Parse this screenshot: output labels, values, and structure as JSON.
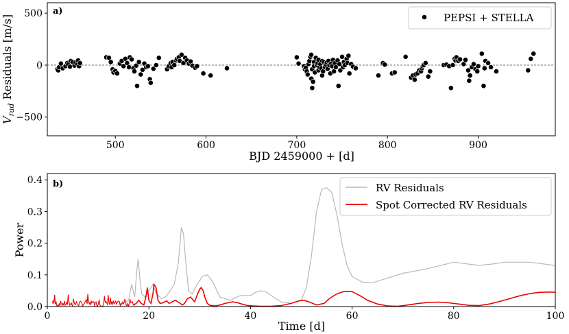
{
  "chart_data": [
    {
      "panel": "a)",
      "type": "scatter",
      "title": "",
      "xlabel": "BJD 2459000 + [d]",
      "ylabel": "V_rad Residuals [m/s]",
      "ylabel_main": "V",
      "ylabel_sub": "rad",
      "ylabel_rest": " Residuals [m/s]",
      "xlim": [
        425,
        985
      ],
      "ylim": [
        -680,
        600
      ],
      "xticks": [
        500,
        600,
        700,
        800,
        900
      ],
      "yticks": [
        -500,
        0,
        500
      ],
      "ytick_labels": [
        "−500",
        "0",
        "500"
      ],
      "reference_line": 0,
      "legend": {
        "label": "PEPSI + STELLA",
        "location": "top-right"
      },
      "points": [
        [
          436,
          -40
        ],
        [
          437,
          -50
        ],
        [
          438,
          -20
        ],
        [
          440,
          15
        ],
        [
          442,
          -30
        ],
        [
          445,
          -10
        ],
        [
          447,
          20
        ],
        [
          448,
          5
        ],
        [
          450,
          -15
        ],
        [
          451,
          40
        ],
        [
          453,
          30
        ],
        [
          455,
          -5
        ],
        [
          456,
          25
        ],
        [
          458,
          10
        ],
        [
          459,
          45
        ],
        [
          460,
          -10
        ],
        [
          461,
          20
        ],
        [
          490,
          75
        ],
        [
          493,
          70
        ],
        [
          495,
          30
        ],
        [
          497,
          -40
        ],
        [
          498,
          -70
        ],
        [
          500,
          -55
        ],
        [
          502,
          -80
        ],
        [
          505,
          15
        ],
        [
          507,
          40
        ],
        [
          509,
          -10
        ],
        [
          511,
          60
        ],
        [
          513,
          20
        ],
        [
          515,
          -20
        ],
        [
          516,
          75
        ],
        [
          518,
          55
        ],
        [
          520,
          -30
        ],
        [
          521,
          -60
        ],
        [
          523,
          -5
        ],
        [
          524,
          -200
        ],
        [
          526,
          30
        ],
        [
          528,
          -90
        ],
        [
          530,
          -45
        ],
        [
          532,
          15
        ],
        [
          534,
          -20
        ],
        [
          536,
          -10
        ],
        [
          538,
          -135
        ],
        [
          539,
          -170
        ],
        [
          542,
          -35
        ],
        [
          545,
          0
        ],
        [
          548,
          70
        ],
        [
          557,
          -40
        ],
        [
          559,
          -10
        ],
        [
          561,
          20
        ],
        [
          562,
          -20
        ],
        [
          563,
          30
        ],
        [
          565,
          0
        ],
        [
          567,
          45
        ],
        [
          568,
          60
        ],
        [
          570,
          75
        ],
        [
          571,
          40
        ],
        [
          573,
          100
        ],
        [
          575,
          20
        ],
        [
          577,
          70
        ],
        [
          579,
          45
        ],
        [
          581,
          15
        ],
        [
          583,
          35
        ],
        [
          585,
          -5
        ],
        [
          588,
          -25
        ],
        [
          590,
          -10
        ],
        [
          597,
          -80
        ],
        [
          605,
          -100
        ],
        [
          623,
          -30
        ],
        [
          700,
          75
        ],
        [
          702,
          15
        ],
        [
          708,
          -10
        ],
        [
          709,
          -40
        ],
        [
          710,
          -25
        ],
        [
          711,
          -60
        ],
        [
          712,
          -90
        ],
        [
          713,
          10
        ],
        [
          714,
          40
        ],
        [
          715,
          80
        ],
        [
          716,
          100
        ],
        [
          716,
          -130
        ],
        [
          717,
          -40
        ],
        [
          717,
          -220
        ],
        [
          718,
          -160
        ],
        [
          719,
          30
        ],
        [
          719,
          -10
        ],
        [
          720,
          -70
        ],
        [
          721,
          70
        ],
        [
          722,
          0
        ],
        [
          723,
          20
        ],
        [
          724,
          50
        ],
        [
          724,
          -50
        ],
        [
          725,
          -20
        ],
        [
          726,
          10
        ],
        [
          727,
          -30
        ],
        [
          728,
          40
        ],
        [
          728,
          -100
        ],
        [
          729,
          -60
        ],
        [
          730,
          30
        ],
        [
          731,
          -20
        ],
        [
          732,
          5
        ],
        [
          733,
          25
        ],
        [
          734,
          -35
        ],
        [
          735,
          40
        ],
        [
          736,
          0
        ],
        [
          737,
          -80
        ],
        [
          738,
          15
        ],
        [
          739,
          -10
        ],
        [
          740,
          50
        ],
        [
          741,
          -60
        ],
        [
          742,
          20
        ],
        [
          743,
          -20
        ],
        [
          745,
          45
        ],
        [
          746,
          -200
        ],
        [
          747,
          10
        ],
        [
          748,
          -50
        ],
        [
          750,
          80
        ],
        [
          751,
          -20
        ],
        [
          752,
          30
        ],
        [
          753,
          0
        ],
        [
          755,
          60
        ],
        [
          756,
          20
        ],
        [
          757,
          90
        ],
        [
          758,
          -80
        ],
        [
          760,
          10
        ],
        [
          762,
          -15
        ],
        [
          765,
          -30
        ],
        [
          790,
          -100
        ],
        [
          795,
          20
        ],
        [
          797,
          5
        ],
        [
          805,
          -80
        ],
        [
          808,
          -70
        ],
        [
          820,
          80
        ],
        [
          826,
          -120
        ],
        [
          828,
          -100
        ],
        [
          830,
          -140
        ],
        [
          831,
          -90
        ],
        [
          833,
          -80
        ],
        [
          835,
          -50
        ],
        [
          837,
          -60
        ],
        [
          838,
          -30
        ],
        [
          839,
          -10
        ],
        [
          840,
          0
        ],
        [
          842,
          20
        ],
        [
          845,
          -110
        ],
        [
          847,
          -60
        ],
        [
          862,
          0
        ],
        [
          865,
          5
        ],
        [
          868,
          -10
        ],
        [
          870,
          -220
        ],
        [
          872,
          0
        ],
        [
          874,
          60
        ],
        [
          875,
          45
        ],
        [
          876,
          75
        ],
        [
          878,
          40
        ],
        [
          880,
          55
        ],
        [
          884,
          10
        ],
        [
          886,
          50
        ],
        [
          889,
          -50
        ],
        [
          890,
          -150
        ],
        [
          891,
          -100
        ],
        [
          893,
          -20
        ],
        [
          895,
          10
        ],
        [
          897,
          -40
        ],
        [
          899,
          -60
        ],
        [
          900,
          -10
        ],
        [
          904,
          110
        ],
        [
          906,
          -200
        ],
        [
          907,
          -30
        ],
        [
          908,
          40
        ],
        [
          911,
          20
        ],
        [
          914,
          -20
        ],
        [
          920,
          -60
        ],
        [
          955,
          -50
        ],
        [
          958,
          60
        ],
        [
          961,
          110
        ]
      ]
    },
    {
      "panel": "b)",
      "type": "line",
      "title": "",
      "xlabel": "Time [d]",
      "ylabel": "Power",
      "xlim": [
        0,
        100
      ],
      "ylim": [
        0,
        0.42
      ],
      "xticks": [
        0,
        20,
        40,
        60,
        80,
        100
      ],
      "yticks": [
        0.0,
        0.1,
        0.2,
        0.3,
        0.4
      ],
      "ytick_labels": [
        "0.0",
        "0.1",
        "0.2",
        "0.3",
        "0.4"
      ],
      "legend": {
        "location": "top-right",
        "entries": [
          "RV Residuals",
          "Spot Corrected RV Residuals"
        ]
      },
      "series": [
        {
          "name": "RV Residuals",
          "color": "#b8b8b8",
          "x": [
            15,
            16,
            16.6,
            17.2,
            17.6,
            17.9,
            18.2,
            18.6,
            19.2,
            20,
            20.8,
            21.5,
            22.5,
            23.2,
            24,
            25,
            25.8,
            26.4,
            26.8,
            27.2,
            27.8,
            28.5,
            29.5,
            30.5,
            31.5,
            32.5,
            34,
            36,
            38,
            40,
            41,
            42,
            43.2,
            44.5,
            46,
            48,
            50,
            51,
            52,
            53,
            54,
            55,
            56,
            57,
            58,
            59,
            60,
            62,
            64,
            66,
            70,
            75,
            80,
            85,
            88,
            90,
            95,
            100
          ],
          "y": [
            0.01,
            0.02,
            0.07,
            0.03,
            0.11,
            0.15,
            0.09,
            0.04,
            0.03,
            0.05,
            0.07,
            0.04,
            0.025,
            0.03,
            0.045,
            0.07,
            0.14,
            0.25,
            0.23,
            0.15,
            0.05,
            0.04,
            0.07,
            0.095,
            0.1,
            0.08,
            0.03,
            0.02,
            0.035,
            0.035,
            0.045,
            0.05,
            0.045,
            0.03,
            0.015,
            0.01,
            0.02,
            0.06,
            0.16,
            0.3,
            0.37,
            0.375,
            0.36,
            0.29,
            0.2,
            0.13,
            0.095,
            0.077,
            0.075,
            0.085,
            0.105,
            0.12,
            0.14,
            0.13,
            0.135,
            0.14,
            0.14,
            0.13
          ]
        },
        {
          "name": "Spot Corrected RV Residuals",
          "color": "#ee0000",
          "x": [
            17,
            17.5,
            18,
            18.5,
            19,
            19.4,
            19.7,
            20,
            20.4,
            20.8,
            21,
            21.4,
            21.8,
            22.2,
            22.8,
            23.5,
            24,
            24.6,
            25.2,
            26,
            26.6,
            27,
            27.6,
            28.2,
            29,
            29.6,
            30,
            30.3,
            30.7,
            31,
            31.5,
            32,
            33,
            34,
            35,
            36.5,
            37.5,
            38.5,
            39.5,
            40.5,
            42,
            44,
            46,
            48,
            49.5,
            50.5,
            51.5,
            53,
            54.5,
            55.5,
            57,
            58.5,
            60,
            61.5,
            63,
            65,
            67,
            69,
            71,
            73,
            75,
            77,
            79,
            81,
            83,
            85,
            87,
            89,
            91,
            93,
            95,
            97,
            99,
            100
          ],
          "y": [
            0.005,
            0.01,
            0.02,
            0.01,
            0.005,
            0.03,
            0.06,
            0.02,
            0.01,
            0.04,
            0.07,
            0.06,
            0.02,
            0.01,
            0.012,
            0.018,
            0.01,
            0.015,
            0.02,
            0.012,
            0.005,
            0.01,
            0.025,
            0.03,
            0.015,
            0.04,
            0.055,
            0.06,
            0.05,
            0.03,
            0.01,
            0.004,
            0.002,
            0.005,
            0.01,
            0.015,
            0.012,
            0.007,
            0.003,
            0.002,
            0.001,
            0.001,
            0.003,
            0.01,
            0.018,
            0.02,
            0.015,
            0.005,
            0.01,
            0.025,
            0.04,
            0.048,
            0.047,
            0.035,
            0.02,
            0.008,
            0.002,
            0.001,
            0.005,
            0.01,
            0.013,
            0.014,
            0.012,
            0.008,
            0.004,
            0.003,
            0.008,
            0.016,
            0.025,
            0.034,
            0.041,
            0.045,
            0.046,
            0.045
          ]
        }
      ]
    }
  ]
}
